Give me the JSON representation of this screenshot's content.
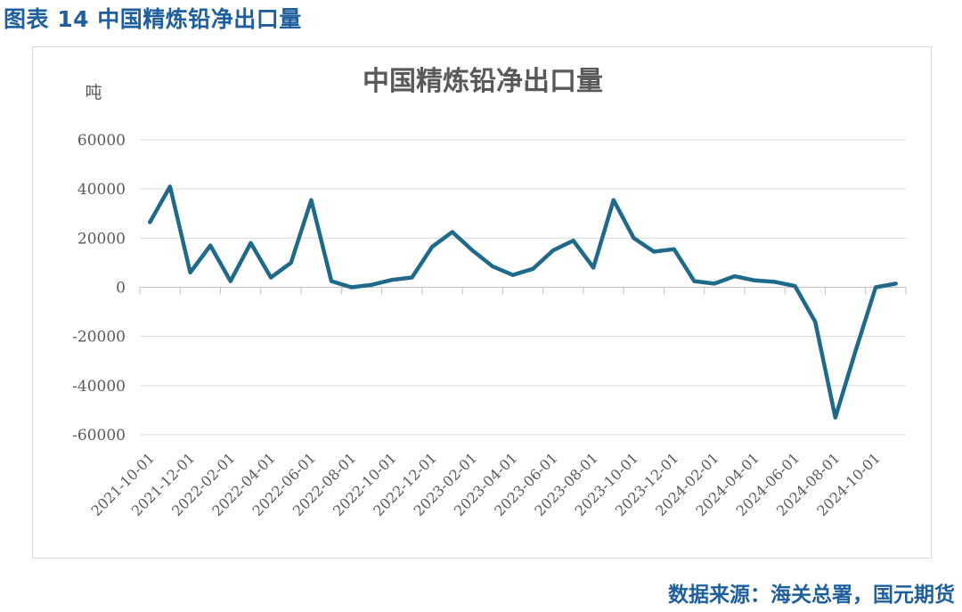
{
  "figure": {
    "header": "图表 14 中国精炼铅净出口量",
    "source": "数据来源：海关总署，国元期货"
  },
  "colors": {
    "line": "#1f6a8a",
    "grid": "#d9d9d9",
    "header": "#1f5f9e",
    "text": "#595959"
  },
  "chart_data": {
    "type": "line",
    "title": "中国精炼铅净出口量",
    "ylabel": "吨",
    "ylim": [
      -60000,
      60000
    ],
    "yticks": [
      60000,
      40000,
      20000,
      0,
      -20000,
      -40000,
      -60000
    ],
    "grid": true,
    "x": [
      "2021-10-01",
      "2021-11-01",
      "2021-12-01",
      "2022-01-01",
      "2022-02-01",
      "2022-03-01",
      "2022-04-01",
      "2022-05-01",
      "2022-06-01",
      "2022-07-01",
      "2022-08-01",
      "2022-09-01",
      "2022-10-01",
      "2022-11-01",
      "2022-12-01",
      "2023-01-01",
      "2023-02-01",
      "2023-03-01",
      "2023-04-01",
      "2023-05-01",
      "2023-06-01",
      "2023-07-01",
      "2023-08-01",
      "2023-09-01",
      "2023-10-01",
      "2023-11-01",
      "2023-12-01",
      "2024-01-01",
      "2024-02-01",
      "2024-03-01",
      "2024-04-01",
      "2024-05-01",
      "2024-06-01",
      "2024-07-01",
      "2024-08-01",
      "2024-09-01",
      "2024-10-01",
      "2024-11-01"
    ],
    "xtick_labels": [
      "2021-10-01",
      "2021-12-01",
      "2022-02-01",
      "2022-04-01",
      "2022-06-01",
      "2022-08-01",
      "2022-10-01",
      "2022-12-01",
      "2023-02-01",
      "2023-04-01",
      "2023-06-01",
      "2023-08-01",
      "2023-10-01",
      "2023-12-01",
      "2024-02-01",
      "2024-04-01",
      "2024-06-01",
      "2024-08-01",
      "2024-10-01"
    ],
    "series": [
      {
        "values": [
          26500,
          41000,
          6000,
          17000,
          2500,
          18000,
          4000,
          10000,
          35500,
          2500,
          0,
          1000,
          3000,
          4000,
          16500,
          22500,
          15000,
          8500,
          5000,
          7500,
          15000,
          19000,
          8000,
          35500,
          20000,
          14500,
          15500,
          2500,
          1500,
          4500,
          2800,
          2200,
          500,
          -14000,
          -53000,
          -26000,
          0,
          1500
        ]
      }
    ]
  }
}
